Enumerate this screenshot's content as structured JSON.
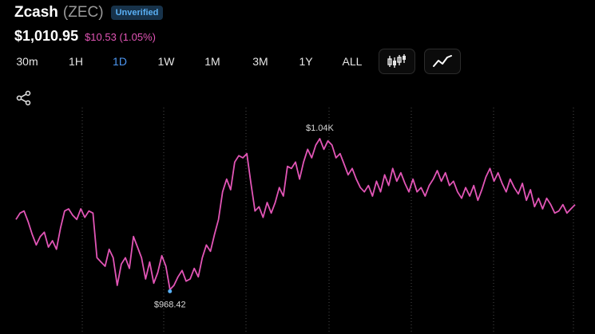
{
  "asset": {
    "name": "Zcash",
    "ticker": "(ZEC)",
    "badge": "Unverified"
  },
  "price": {
    "value": "$1,010.95",
    "change": "$10.53 (1.05%)"
  },
  "ranges": [
    "30m",
    "1H",
    "1D",
    "1W",
    "1M",
    "3M",
    "1Y",
    "ALL"
  ],
  "active_range": "1D",
  "chart_type_buttons": [
    {
      "icon": "candlestick-icon"
    },
    {
      "icon": "line-chart-icon"
    }
  ],
  "share_icon": "share-icon",
  "colors": {
    "line": "#e255b6",
    "change": "#e255b6",
    "accent": "#4d96f0",
    "low_marker": "#5ab0f5",
    "badge_bg": "#17324a",
    "badge_text": "#5ab0f5",
    "gridline": "#4a4a4a"
  },
  "chart_data": {
    "type": "line",
    "high_label": "$1.04K",
    "low_label": "$968.42",
    "high_value": 1040,
    "low_value": 968.42,
    "ylim": [
      960,
      1050
    ],
    "gridlines": "vertical-dotted",
    "series": [
      {
        "values": [
          1003,
          1006,
          1007,
          1002,
          996,
          991,
          995,
          997,
          990,
          993,
          989,
          999,
          1007,
          1008,
          1005,
          1003,
          1008,
          1004,
          1007,
          1006,
          985,
          983,
          981,
          989,
          985,
          972,
          982,
          985,
          980,
          995,
          990,
          985,
          975,
          983,
          973,
          978,
          986,
          981,
          970,
          972,
          976,
          979,
          974,
          975,
          980,
          976,
          985,
          991,
          988,
          996,
          1003,
          1016,
          1022,
          1017,
          1030,
          1033,
          1032,
          1034,
          1020,
          1007,
          1009,
          1004,
          1011,
          1006,
          1011,
          1018,
          1014,
          1028,
          1027,
          1030,
          1022,
          1030,
          1036,
          1032,
          1038,
          1041,
          1036,
          1040,
          1038,
          1032,
          1034,
          1029,
          1024,
          1027,
          1022,
          1018,
          1016,
          1019,
          1014,
          1021,
          1016,
          1024,
          1019,
          1027,
          1021,
          1025,
          1020,
          1016,
          1022,
          1016,
          1018,
          1014,
          1019,
          1022,
          1026,
          1021,
          1025,
          1019,
          1021,
          1016,
          1013,
          1018,
          1014,
          1019,
          1012,
          1017,
          1023,
          1027,
          1021,
          1025,
          1020,
          1016,
          1022,
          1018,
          1015,
          1020,
          1012,
          1017,
          1009,
          1013,
          1008,
          1013,
          1010,
          1006,
          1007,
          1010,
          1006,
          1008,
          1010
        ]
      }
    ]
  }
}
